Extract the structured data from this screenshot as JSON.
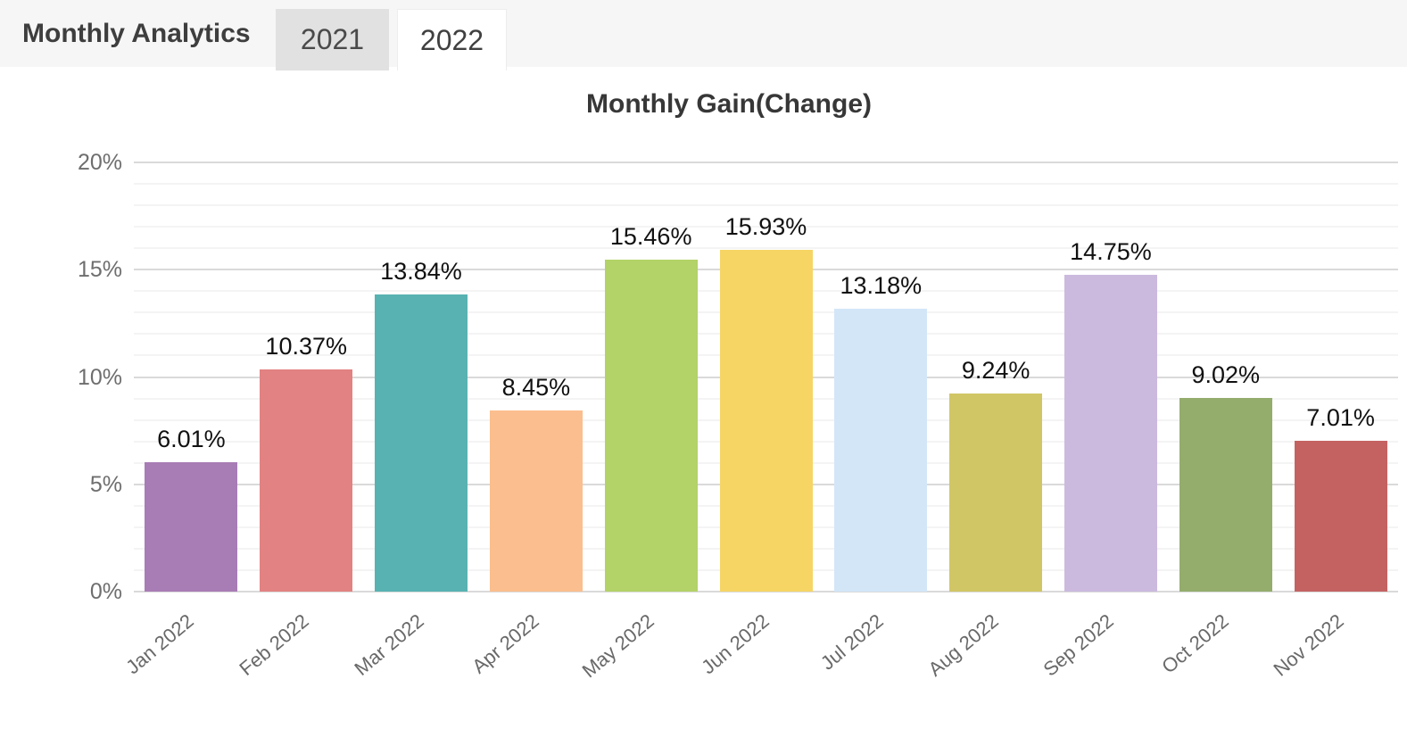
{
  "header": {
    "title": "Monthly Analytics",
    "tabs": [
      {
        "label": "2021",
        "active": false
      },
      {
        "label": "2022",
        "active": true
      }
    ]
  },
  "chart_data": {
    "type": "bar",
    "title": "Monthly Gain(Change)",
    "categories": [
      "Jan 2022",
      "Feb 2022",
      "Mar 2022",
      "Apr 2022",
      "May 2022",
      "Jun 2022",
      "Jul 2022",
      "Aug 2022",
      "Sep 2022",
      "Oct 2022",
      "Nov 2022"
    ],
    "values": [
      6.01,
      10.37,
      13.84,
      8.45,
      15.46,
      15.93,
      13.18,
      9.24,
      14.75,
      9.02,
      7.01
    ],
    "value_labels": [
      "6.01%",
      "10.37%",
      "13.84%",
      "8.45%",
      "15.46%",
      "15.93%",
      "13.18%",
      "9.24%",
      "14.75%",
      "9.02%",
      "7.01%"
    ],
    "bar_colors": [
      "#a87cb5",
      "#e28282",
      "#58b2b2",
      "#fbbe8e",
      "#b3d268",
      "#f6d565",
      "#d3e6f8",
      "#d1c666",
      "#cbbade",
      "#94ad6d",
      "#c46262"
    ],
    "xlabel": "",
    "ylabel": "",
    "ylim": [
      0,
      20
    ],
    "ytick_values": [
      0,
      5,
      10,
      15,
      20
    ],
    "ytick_labels": [
      "0%",
      "5%",
      "10%",
      "15%",
      "20%"
    ],
    "grid": "horizontal, minor lines every 1%, major every 5%",
    "legend": "none"
  }
}
